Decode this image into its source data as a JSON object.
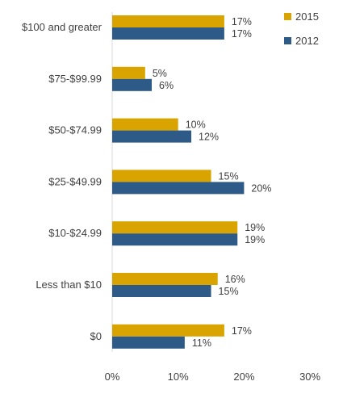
{
  "chart_data": {
    "type": "bar",
    "orientation": "horizontal",
    "categories": [
      "$100 and greater",
      "$75-$99.99",
      "$50-$74.99",
      "$25-$49.99",
      "$10-$24.99",
      "Less than $10",
      "$0"
    ],
    "series": [
      {
        "name": "2015",
        "color": "#DAA400",
        "values": [
          17,
          5,
          10,
          15,
          19,
          16,
          17
        ]
      },
      {
        "name": "2012",
        "color": "#2E5A87",
        "values": [
          17,
          6,
          12,
          20,
          19,
          15,
          11
        ]
      }
    ],
    "value_suffix": "%",
    "xlim": [
      0,
      30
    ],
    "xticks": [
      0,
      10,
      20,
      30
    ],
    "xtick_labels": [
      "0%",
      "10%",
      "20%",
      "30%"
    ],
    "grid": false,
    "legend_position": "top-right",
    "title": "",
    "xlabel": "",
    "ylabel": ""
  }
}
